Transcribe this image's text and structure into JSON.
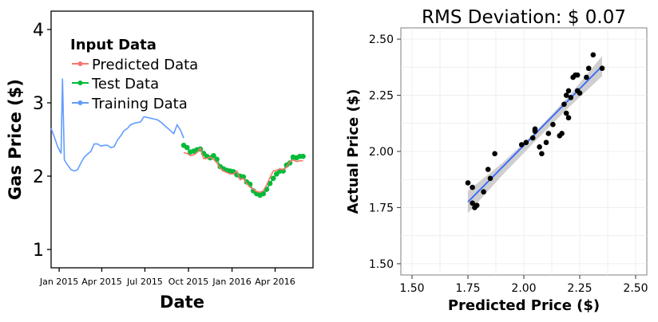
{
  "colors": {
    "predicted": "#f8766d",
    "test": "#00ba38",
    "training": "#619cff",
    "scatter_point": "#000000",
    "fit_line": "#3366ff",
    "ci_band": "#bfbfbf",
    "grid": "#ebebeb"
  },
  "chart_data": [
    {
      "type": "line",
      "title": "",
      "xlabel": "Date",
      "ylabel": "Gas Price ($)",
      "ylim": [
        0.75,
        4.25
      ],
      "xlim": [
        "2014-12-15",
        "2016-06-20"
      ],
      "x_ticks": [
        {
          "date": "2015-01-01",
          "label": "Jan 2015"
        },
        {
          "date": "2015-04-01",
          "label": "Apr 2015"
        },
        {
          "date": "2015-07-01",
          "label": "Jul 2015"
        },
        {
          "date": "2015-10-01",
          "label": "Oct 2015"
        },
        {
          "date": "2016-01-01",
          "label": "Jan 2016"
        },
        {
          "date": "2016-04-01",
          "label": "Apr 2016"
        }
      ],
      "y_ticks": [
        1,
        2,
        3,
        4
      ],
      "grid": false,
      "legend": {
        "title": "Input Data",
        "placement": "top-left",
        "entries": [
          "Predicted Data",
          "Test Data",
          "Training Data"
        ]
      },
      "series": [
        {
          "name": "Training Data",
          "points": [
            [
              "2014-12-15",
              2.65
            ],
            [
              "2014-12-22",
              2.53
            ],
            [
              "2014-12-29",
              2.4
            ],
            [
              "2015-01-05",
              2.31
            ],
            [
              "2015-01-08",
              3.33
            ],
            [
              "2015-01-12",
              2.22
            ],
            [
              "2015-01-19",
              2.15
            ],
            [
              "2015-01-26",
              2.09
            ],
            [
              "2015-02-02",
              2.07
            ],
            [
              "2015-02-09",
              2.09
            ],
            [
              "2015-02-16",
              2.18
            ],
            [
              "2015-02-23",
              2.26
            ],
            [
              "2015-03-02",
              2.3
            ],
            [
              "2015-03-09",
              2.34
            ],
            [
              "2015-03-16",
              2.44
            ],
            [
              "2015-03-23",
              2.44
            ],
            [
              "2015-03-30",
              2.41
            ],
            [
              "2015-04-06",
              2.42
            ],
            [
              "2015-04-13",
              2.42
            ],
            [
              "2015-04-20",
              2.39
            ],
            [
              "2015-04-27",
              2.4
            ],
            [
              "2015-05-04",
              2.49
            ],
            [
              "2015-05-11",
              2.55
            ],
            [
              "2015-05-18",
              2.62
            ],
            [
              "2015-05-25",
              2.65
            ],
            [
              "2015-06-01",
              2.7
            ],
            [
              "2015-06-08",
              2.72
            ],
            [
              "2015-06-15",
              2.73
            ],
            [
              "2015-06-22",
              2.74
            ],
            [
              "2015-06-29",
              2.81
            ],
            [
              "2015-07-06",
              2.8
            ],
            [
              "2015-07-13",
              2.79
            ],
            [
              "2015-07-20",
              2.78
            ],
            [
              "2015-07-27",
              2.77
            ],
            [
              "2015-08-03",
              2.74
            ],
            [
              "2015-08-10",
              2.7
            ],
            [
              "2015-08-17",
              2.66
            ],
            [
              "2015-08-24",
              2.62
            ],
            [
              "2015-08-31",
              2.58
            ],
            [
              "2015-09-07",
              2.7
            ],
            [
              "2015-09-14",
              2.63
            ],
            [
              "2015-09-21",
              2.52
            ]
          ]
        },
        {
          "name": "Test Data",
          "points": [
            [
              "2015-09-21",
              2.42
            ],
            [
              "2015-09-28",
              2.39
            ],
            [
              "2015-10-05",
              2.33
            ],
            [
              "2015-10-12",
              2.34
            ],
            [
              "2015-10-19",
              2.36
            ],
            [
              "2015-10-26",
              2.37
            ],
            [
              "2015-11-02",
              2.31
            ],
            [
              "2015-11-09",
              2.27
            ],
            [
              "2015-11-16",
              2.25
            ],
            [
              "2015-11-23",
              2.28
            ],
            [
              "2015-11-30",
              2.23
            ],
            [
              "2015-12-07",
              2.13
            ],
            [
              "2015-12-14",
              2.1
            ],
            [
              "2015-12-21",
              2.08
            ],
            [
              "2015-12-28",
              2.07
            ],
            [
              "2016-01-04",
              2.06
            ],
            [
              "2016-01-11",
              2.02
            ],
            [
              "2016-01-18",
              2.0
            ],
            [
              "2016-01-25",
              1.99
            ],
            [
              "2016-02-01",
              1.92
            ],
            [
              "2016-02-08",
              1.89
            ],
            [
              "2016-02-15",
              1.8
            ],
            [
              "2016-02-22",
              1.76
            ],
            [
              "2016-02-29",
              1.74
            ],
            [
              "2016-03-07",
              1.76
            ],
            [
              "2016-03-14",
              1.82
            ],
            [
              "2016-03-21",
              1.9
            ],
            [
              "2016-03-28",
              1.97
            ],
            [
              "2016-04-04",
              2.03
            ],
            [
              "2016-04-11",
              2.07
            ],
            [
              "2016-04-18",
              2.07
            ],
            [
              "2016-04-25",
              2.15
            ],
            [
              "2016-05-02",
              2.18
            ],
            [
              "2016-05-09",
              2.26
            ],
            [
              "2016-05-16",
              2.25
            ],
            [
              "2016-05-23",
              2.27
            ],
            [
              "2016-05-30",
              2.27
            ]
          ]
        },
        {
          "name": "Predicted Data",
          "points": [
            [
              "2015-09-21",
              2.32
            ],
            [
              "2015-09-28",
              2.31
            ],
            [
              "2015-10-05",
              2.28
            ],
            [
              "2015-10-12",
              2.29
            ],
            [
              "2015-10-19",
              2.32
            ],
            [
              "2015-10-26",
              2.38
            ],
            [
              "2015-11-02",
              2.24
            ],
            [
              "2015-11-09",
              2.24
            ],
            [
              "2015-11-16",
              2.26
            ],
            [
              "2015-11-23",
              2.23
            ],
            [
              "2015-11-30",
              2.18
            ],
            [
              "2015-12-07",
              2.11
            ],
            [
              "2015-12-14",
              2.07
            ],
            [
              "2015-12-21",
              2.05
            ],
            [
              "2015-12-28",
              2.03
            ],
            [
              "2016-01-04",
              2.03
            ],
            [
              "2016-01-11",
              2.07
            ],
            [
              "2016-01-18",
              1.95
            ],
            [
              "2016-01-25",
              1.97
            ],
            [
              "2016-02-01",
              1.9
            ],
            [
              "2016-02-08",
              1.85
            ],
            [
              "2016-02-15",
              1.82
            ],
            [
              "2016-02-22",
              1.79
            ],
            [
              "2016-02-29",
              1.78
            ],
            [
              "2016-03-07",
              1.8
            ],
            [
              "2016-03-14",
              1.88
            ],
            [
              "2016-03-21",
              1.98
            ],
            [
              "2016-03-28",
              2.07
            ],
            [
              "2016-04-04",
              2.08
            ],
            [
              "2016-04-11",
              2.1
            ],
            [
              "2016-04-18",
              2.09
            ],
            [
              "2016-04-25",
              2.12
            ],
            [
              "2016-05-02",
              2.2
            ],
            [
              "2016-05-09",
              2.22
            ],
            [
              "2016-05-16",
              2.2
            ],
            [
              "2016-05-23",
              2.21
            ],
            [
              "2016-05-30",
              2.21
            ]
          ]
        }
      ]
    },
    {
      "type": "scatter",
      "title": "RMS Deviation: $ 0.07",
      "xlabel": "Predicted Price ($)",
      "ylabel": "Actual Price ($)",
      "xlim": [
        1.45,
        2.55
      ],
      "ylim": [
        1.45,
        2.55
      ],
      "x_ticks": [
        {
          "value": 1.5,
          "label": "1.50"
        },
        {
          "value": 1.75,
          "label": "1.75"
        },
        {
          "value": 2.0,
          "label": "2.00"
        },
        {
          "value": 2.25,
          "label": "2.25"
        },
        {
          "value": 2.5,
          "label": "2.50"
        }
      ],
      "y_ticks": [
        {
          "value": 1.5,
          "label": "1.50"
        },
        {
          "value": 1.75,
          "label": "1.75"
        },
        {
          "value": 2.0,
          "label": "2.00"
        },
        {
          "value": 2.25,
          "label": "2.25"
        },
        {
          "value": 2.5,
          "label": "2.50"
        }
      ],
      "grid": true,
      "points": [
        [
          1.75,
          1.86
        ],
        [
          1.77,
          1.84
        ],
        [
          1.77,
          1.77
        ],
        [
          1.78,
          1.75
        ],
        [
          1.79,
          1.76
        ],
        [
          1.82,
          1.82
        ],
        [
          1.84,
          1.92
        ],
        [
          1.85,
          1.88
        ],
        [
          1.87,
          1.99
        ],
        [
          1.99,
          2.03
        ],
        [
          2.01,
          2.04
        ],
        [
          2.04,
          2.06
        ],
        [
          2.05,
          2.1
        ],
        [
          2.05,
          2.09
        ],
        [
          2.07,
          2.02
        ],
        [
          2.08,
          1.99
        ],
        [
          2.1,
          2.04
        ],
        [
          2.11,
          2.08
        ],
        [
          2.13,
          2.12
        ],
        [
          2.16,
          2.07
        ],
        [
          2.17,
          2.08
        ],
        [
          2.18,
          2.21
        ],
        [
          2.19,
          2.25
        ],
        [
          2.19,
          2.17
        ],
        [
          2.2,
          2.15
        ],
        [
          2.2,
          2.27
        ],
        [
          2.21,
          2.24
        ],
        [
          2.22,
          2.33
        ],
        [
          2.23,
          2.34
        ],
        [
          2.24,
          2.27
        ],
        [
          2.24,
          2.34
        ],
        [
          2.25,
          2.26
        ],
        [
          2.28,
          2.33
        ],
        [
          2.29,
          2.37
        ],
        [
          2.31,
          2.43
        ],
        [
          2.35,
          2.37
        ]
      ],
      "fit_line": [
        [
          1.75,
          1.775
        ],
        [
          2.35,
          2.38
        ]
      ],
      "ci_band": {
        "x": [
          1.75,
          1.9,
          2.05,
          2.2,
          2.35
        ],
        "lower": [
          1.725,
          1.89,
          2.045,
          2.195,
          2.335
        ],
        "upper": [
          1.825,
          1.945,
          2.085,
          2.245,
          2.425
        ]
      }
    }
  ]
}
